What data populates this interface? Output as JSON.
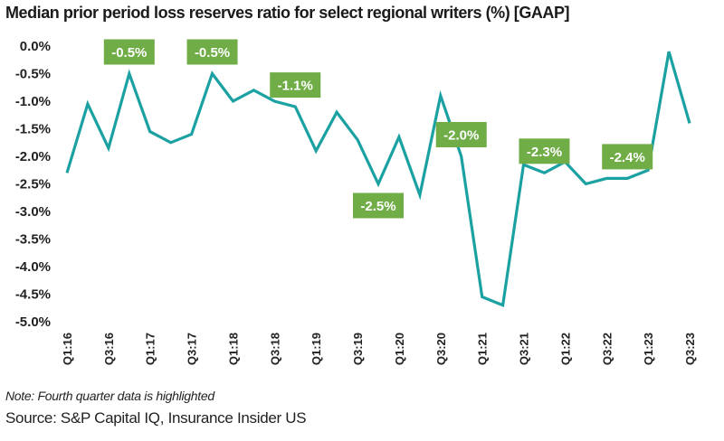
{
  "chart_data": {
    "type": "line",
    "title": "Median prior period loss reserves ratio for select regional writers (%) [GAAP]",
    "xlabel": "",
    "ylabel": "",
    "ylim": [
      -5.0,
      0.0
    ],
    "y_ticks": [
      "0.0%",
      "-0.5%",
      "-1.0%",
      "-1.5%",
      "-2.0%",
      "-2.5%",
      "-3.0%",
      "-3.5%",
      "-4.0%",
      "-4.5%",
      "-5.0%"
    ],
    "x_tick_labels": [
      "Q1:16",
      "Q3:16",
      "Q1:17",
      "Q3:17",
      "Q1:18",
      "Q3:18",
      "Q1:19",
      "Q3:19",
      "Q1:20",
      "Q3:20",
      "Q1:21",
      "Q3:21",
      "Q1:22",
      "Q3:22",
      "Q1:23",
      "Q3:23"
    ],
    "x": [
      "Q1:16",
      "Q2:16",
      "Q3:16",
      "Q4:16",
      "Q1:17",
      "Q2:17",
      "Q3:17",
      "Q4:17",
      "Q1:18",
      "Q2:18",
      "Q3:18",
      "Q4:18",
      "Q1:19",
      "Q2:19",
      "Q3:19",
      "Q4:19",
      "Q1:20",
      "Q2:20",
      "Q3:20",
      "Q4:20",
      "Q1:21",
      "Q2:21",
      "Q3:21",
      "Q4:21",
      "Q1:22",
      "Q2:22",
      "Q3:22",
      "Q4:22",
      "Q1:23",
      "Q2:23",
      "Q3:23"
    ],
    "series": [
      {
        "values": [
          -2.3,
          -1.05,
          -1.85,
          -0.5,
          -1.55,
          -1.75,
          -1.6,
          -0.5,
          -1.0,
          -0.8,
          -1.0,
          -1.1,
          -1.9,
          -1.2,
          -1.7,
          -2.5,
          -1.65,
          -2.7,
          -0.9,
          -2.0,
          -4.55,
          -4.7,
          -2.15,
          -2.3,
          -2.1,
          -2.5,
          -2.4,
          -2.4,
          -2.25,
          -0.1,
          -1.4
        ]
      }
    ],
    "annotations": [
      {
        "x": "Q4:16",
        "label": "-0.5%"
      },
      {
        "x": "Q4:17",
        "label": "-0.5%"
      },
      {
        "x": "Q4:18",
        "label": "-1.1%"
      },
      {
        "x": "Q4:19",
        "label": "-2.5%"
      },
      {
        "x": "Q4:20",
        "label": "-2.0%"
      },
      {
        "x": "Q4:21",
        "label": "-2.3%"
      },
      {
        "x": "Q4:22",
        "label": "-2.4%"
      }
    ],
    "grid": false,
    "legend": "none",
    "colors": {
      "line": "#1ba1a1",
      "annotation_bg": "#70ad47",
      "annotation_text": "#ffffff"
    }
  },
  "note": "Note: Fourth quarter data is highlighted",
  "source": "Source: S&P Capital IQ, Insurance Insider US"
}
